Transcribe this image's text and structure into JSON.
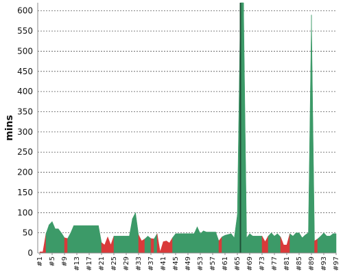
{
  "chart_data": {
    "type": "area",
    "ylabel": "mins",
    "ylim": [
      0,
      620
    ],
    "yticks": [
      0,
      50,
      100,
      150,
      200,
      250,
      300,
      350,
      400,
      450,
      500,
      550,
      600
    ],
    "grid": true,
    "colors": {
      "above": "#3c9a68",
      "below": "#d93a3a"
    },
    "xtick_labels": [
      "#1",
      "#5",
      "#9",
      "#13",
      "#17",
      "#21",
      "#25",
      "#29",
      "#33",
      "#37",
      "#41",
      "#45",
      "#49",
      "#53",
      "#57",
      "#61",
      "#65",
      "#69",
      "#73",
      "#77",
      "#81",
      "#85",
      "#89",
      "#93",
      "#97"
    ],
    "x": [
      1,
      2,
      3,
      4,
      5,
      6,
      7,
      8,
      9,
      10,
      11,
      12,
      13,
      14,
      15,
      16,
      17,
      18,
      19,
      20,
      21,
      22,
      23,
      24,
      25,
      26,
      27,
      28,
      29,
      30,
      31,
      32,
      33,
      34,
      35,
      36,
      37,
      38,
      39,
      40,
      41,
      42,
      43,
      44,
      45,
      46,
      47,
      48,
      49,
      50,
      51,
      52,
      53,
      54,
      55,
      56,
      57,
      58,
      59,
      60,
      61,
      62,
      63,
      64,
      65,
      66,
      67,
      68,
      69,
      70,
      71,
      72,
      73,
      74,
      75,
      76,
      77,
      78,
      79,
      80,
      81,
      82,
      83,
      84,
      85,
      86,
      87,
      88,
      89,
      90,
      91,
      92,
      93,
      94,
      95,
      96,
      97
    ],
    "series": [
      {
        "values": [
          3,
          3,
          48,
          70,
          78,
          60,
          60,
          50,
          38,
          36,
          50,
          68,
          68,
          68,
          68,
          68,
          68,
          68,
          68,
          68,
          26,
          20,
          40,
          20,
          42,
          42,
          42,
          42,
          42,
          42,
          85,
          100,
          45,
          30,
          35,
          42,
          36,
          35,
          48,
          3,
          28,
          30,
          25,
          38,
          48,
          48,
          48,
          48,
          48,
          48,
          48,
          65,
          48,
          55,
          52,
          52,
          52,
          52,
          30,
          40,
          44,
          46,
          48,
          38,
          95,
          620,
          620,
          38,
          48,
          42,
          42,
          42,
          42,
          28,
          42,
          50,
          42,
          48,
          40,
          20,
          20,
          48,
          42,
          50,
          50,
          38,
          45,
          50,
          590,
          30,
          35,
          42,
          50,
          42,
          42,
          48,
          48
        ]
      },
      {
        "values": [
          0,
          0,
          0,
          0,
          0,
          0,
          0,
          0,
          0,
          0,
          0,
          0,
          0,
          0,
          0,
          0,
          0,
          0,
          0,
          0,
          0,
          0,
          0,
          0,
          0,
          0,
          0,
          0,
          0,
          0,
          0,
          0,
          0,
          0,
          0,
          0,
          0,
          0,
          0,
          0,
          0,
          0,
          0,
          0,
          0,
          0,
          0,
          0,
          0,
          0,
          0,
          0,
          0,
          0,
          0,
          0,
          0,
          0,
          0,
          0,
          0,
          0,
          0,
          0,
          0,
          0,
          0,
          0,
          0,
          0,
          0,
          0,
          0,
          0,
          0,
          0,
          0,
          0,
          0,
          0,
          0,
          0,
          0,
          0,
          0,
          0,
          0,
          0,
          0,
          0,
          0,
          0,
          0,
          0,
          0,
          0,
          0
        ]
      }
    ]
  }
}
